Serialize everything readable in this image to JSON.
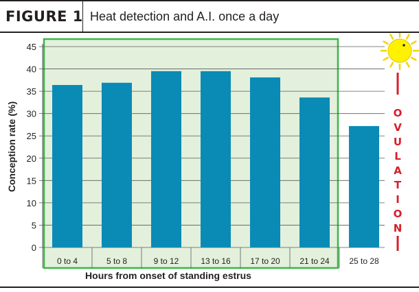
{
  "header": {
    "figure_label": "FIGURE 1",
    "title": "Heat detection and A.I. once a day"
  },
  "colors": {
    "bar_fill": "#0a8bb5",
    "highlight_fill": "#e3f0dc",
    "highlight_border": "#3cb54a",
    "gridline": "#5a5a5a",
    "ovulation_red": "#d71e28",
    "sun_yellow": "#fff200"
  },
  "annotations": {
    "ovulation_letters": [
      "O",
      "V",
      "U",
      "L",
      "A",
      "T",
      "I",
      "O",
      "N"
    ],
    "sun_icon": "sun-icon"
  },
  "chart_data": {
    "type": "bar",
    "title": "",
    "xlabel": "Hours from onset of standing estrus",
    "ylabel": "Conception rate (%)",
    "categories": [
      "0 to 4",
      "5 to 8",
      "9 to 12",
      "13 to 16",
      "17 to 20",
      "21 to 24",
      "25 to 28"
    ],
    "values": [
      36.4,
      36.9,
      39.5,
      39.5,
      38.1,
      33.6,
      27.2
    ],
    "ylim": [
      0,
      45
    ],
    "yticks": [
      0,
      5,
      10,
      15,
      20,
      25,
      30,
      35,
      40,
      45
    ],
    "grid": true,
    "highlighted_categories": [
      "0 to 4",
      "5 to 8",
      "9 to 12",
      "13 to 16",
      "17 to 20",
      "21 to 24"
    ]
  }
}
